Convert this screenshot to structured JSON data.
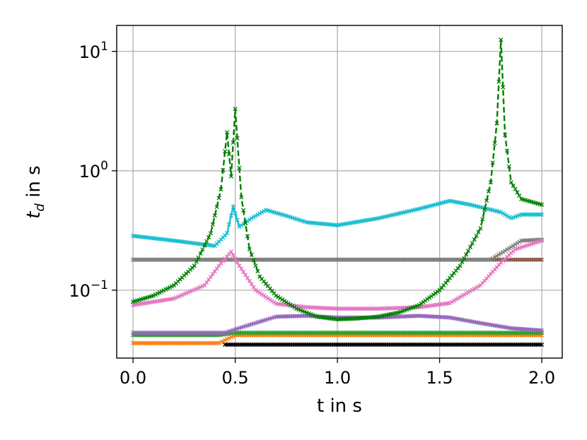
{
  "chart_data": {
    "type": "line",
    "xlabel": "t in s",
    "ylabel_main": "t",
    "ylabel_sub": "d",
    "ylabel_rest": " in s",
    "xlim": [
      -0.08,
      2.1
    ],
    "ylim": [
      0.027,
      16.5
    ],
    "yscale": "log",
    "grid": true,
    "xticks": [
      {
        "v": 0.0,
        "label": "0.0"
      },
      {
        "v": 0.5,
        "label": "0.5"
      },
      {
        "v": 1.0,
        "label": "1.0"
      },
      {
        "v": 1.5,
        "label": "1.5"
      },
      {
        "v": 2.0,
        "label": "2.0"
      }
    ],
    "yticks": [
      {
        "v": 0.1,
        "base": "10",
        "exp": "−1"
      },
      {
        "v": 1,
        "base": "10",
        "exp": "0"
      },
      {
        "v": 10,
        "base": "10",
        "exp": "1"
      }
    ],
    "series": [
      {
        "color": "#ff7f0e",
        "dash": false,
        "marker": "x",
        "points": [
          [
            0,
            0.036
          ],
          [
            0.42,
            0.036
          ],
          [
            0.5,
            0.042
          ],
          [
            1.8,
            0.042
          ],
          [
            2.0,
            0.042
          ]
        ]
      },
      {
        "color": "#2ca02c",
        "dash": false,
        "marker": "x",
        "points": [
          [
            0,
            0.042
          ],
          [
            0.42,
            0.042
          ],
          [
            0.5,
            0.044
          ],
          [
            1.0,
            0.044
          ],
          [
            1.8,
            0.044
          ],
          [
            2.0,
            0.044
          ]
        ]
      },
      {
        "color": "#8c564b",
        "dash": false,
        "marker": "x",
        "points": [
          [
            0,
            0.18
          ],
          [
            0.5,
            0.18
          ],
          [
            1.0,
            0.18
          ],
          [
            1.5,
            0.18
          ],
          [
            2.0,
            0.18
          ]
        ]
      },
      {
        "color": "#7f7f7f",
        "dash": false,
        "marker": "x",
        "points": [
          [
            0,
            0.18
          ],
          [
            0.5,
            0.18
          ],
          [
            1.0,
            0.18
          ],
          [
            1.6,
            0.18
          ],
          [
            1.75,
            0.18
          ],
          [
            1.85,
            0.23
          ],
          [
            1.9,
            0.26
          ],
          [
            2.0,
            0.265
          ]
        ]
      },
      {
        "color": "#000000",
        "dash": false,
        "marker": "x",
        "points": [
          [
            0.45,
            0.035
          ],
          [
            0.55,
            0.035
          ],
          [
            1.0,
            0.035
          ],
          [
            1.7,
            0.035
          ],
          [
            2.0,
            0.035
          ]
        ]
      },
      {
        "color": "#9467bd",
        "dash": false,
        "marker": "x",
        "points": [
          [
            0,
            0.044
          ],
          [
            0.45,
            0.044
          ],
          [
            0.55,
            0.05
          ],
          [
            0.7,
            0.06
          ],
          [
            0.85,
            0.061
          ],
          [
            1.0,
            0.059
          ],
          [
            1.2,
            0.059
          ],
          [
            1.4,
            0.061
          ],
          [
            1.55,
            0.059
          ],
          [
            1.7,
            0.053
          ],
          [
            1.85,
            0.048
          ],
          [
            2.0,
            0.046
          ]
        ]
      },
      {
        "color": "#17becf",
        "dash": false,
        "marker": "x",
        "points": [
          [
            0,
            0.285
          ],
          [
            0.2,
            0.26
          ],
          [
            0.4,
            0.235
          ],
          [
            0.46,
            0.3
          ],
          [
            0.49,
            0.5
          ],
          [
            0.52,
            0.34
          ],
          [
            0.58,
            0.4
          ],
          [
            0.65,
            0.47
          ],
          [
            0.75,
            0.42
          ],
          [
            0.85,
            0.37
          ],
          [
            1.0,
            0.35
          ],
          [
            1.2,
            0.4
          ],
          [
            1.4,
            0.48
          ],
          [
            1.55,
            0.56
          ],
          [
            1.65,
            0.52
          ],
          [
            1.8,
            0.45
          ],
          [
            1.85,
            0.4
          ],
          [
            1.9,
            0.43
          ],
          [
            2.0,
            0.43
          ]
        ]
      },
      {
        "color": "#e377c2",
        "dash": false,
        "marker": "x",
        "points": [
          [
            0,
            0.075
          ],
          [
            0.2,
            0.085
          ],
          [
            0.35,
            0.11
          ],
          [
            0.42,
            0.16
          ],
          [
            0.48,
            0.21
          ],
          [
            0.52,
            0.16
          ],
          [
            0.6,
            0.1
          ],
          [
            0.7,
            0.077
          ],
          [
            0.85,
            0.072
          ],
          [
            1.0,
            0.07
          ],
          [
            1.2,
            0.07
          ],
          [
            1.4,
            0.072
          ],
          [
            1.55,
            0.078
          ],
          [
            1.7,
            0.11
          ],
          [
            1.8,
            0.17
          ],
          [
            1.87,
            0.22
          ],
          [
            2.0,
            0.26
          ]
        ]
      },
      {
        "color": "#007f00",
        "dash": true,
        "marker": "x",
        "points": [
          [
            0,
            0.08
          ],
          [
            0.1,
            0.09
          ],
          [
            0.2,
            0.11
          ],
          [
            0.3,
            0.16
          ],
          [
            0.38,
            0.3
          ],
          [
            0.43,
            0.7
          ],
          [
            0.46,
            2.1
          ],
          [
            0.48,
            0.9
          ],
          [
            0.5,
            3.3
          ],
          [
            0.53,
            0.6
          ],
          [
            0.57,
            0.22
          ],
          [
            0.62,
            0.13
          ],
          [
            0.7,
            0.09
          ],
          [
            0.8,
            0.07
          ],
          [
            0.9,
            0.06
          ],
          [
            1.0,
            0.057
          ],
          [
            1.1,
            0.058
          ],
          [
            1.2,
            0.06
          ],
          [
            1.3,
            0.065
          ],
          [
            1.4,
            0.075
          ],
          [
            1.5,
            0.1
          ],
          [
            1.6,
            0.16
          ],
          [
            1.7,
            0.33
          ],
          [
            1.75,
            0.8
          ],
          [
            1.78,
            2.5
          ],
          [
            1.8,
            12.5
          ],
          [
            1.82,
            2.0
          ],
          [
            1.85,
            0.8
          ],
          [
            1.9,
            0.58
          ],
          [
            2.0,
            0.52
          ]
        ]
      }
    ]
  }
}
